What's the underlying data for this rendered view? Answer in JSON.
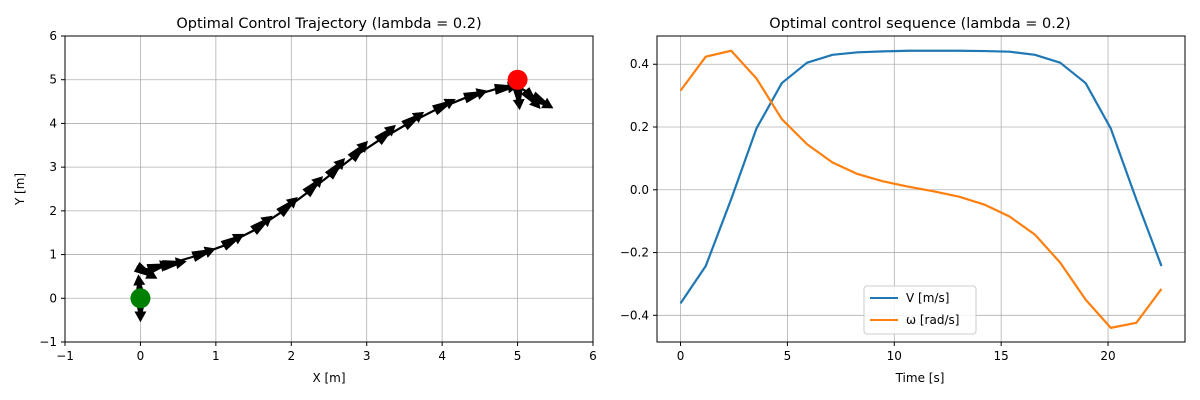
{
  "chart_data": [
    {
      "type": "scatter",
      "title": "Optimal Control Trajectory (lambda = 0.2)",
      "xlabel": "X [m]",
      "ylabel": "Y [m]",
      "xlim": [
        -1,
        6
      ],
      "ylim": [
        -1,
        6
      ],
      "xticks": [
        "−1",
        "0",
        "1",
        "2",
        "3",
        "4",
        "5",
        "6"
      ],
      "yticks": [
        "−1",
        "0",
        "1",
        "2",
        "3",
        "4",
        "5",
        "6"
      ],
      "grid": true,
      "start": {
        "x": 0,
        "y": 0,
        "color": "#008000"
      },
      "goal": {
        "x": 5,
        "y": 5,
        "color": "#ff0000"
      },
      "trajectory_color": "#000000",
      "arrows": [
        {
          "x": 0.0,
          "y": 0.0,
          "heading_deg": -90
        },
        {
          "x": 0.0,
          "y": 0.0,
          "heading_deg": 95
        },
        {
          "x": -0.05,
          "y": 0.72,
          "heading_deg": -30
        },
        {
          "x": 0.1,
          "y": 0.66,
          "heading_deg": 15
        },
        {
          "x": 0.3,
          "y": 0.75,
          "heading_deg": 10
        },
        {
          "x": 0.7,
          "y": 0.95,
          "heading_deg": 20
        },
        {
          "x": 1.1,
          "y": 1.2,
          "heading_deg": 30
        },
        {
          "x": 1.5,
          "y": 1.55,
          "heading_deg": 38
        },
        {
          "x": 1.85,
          "y": 1.95,
          "heading_deg": 42
        },
        {
          "x": 2.2,
          "y": 2.4,
          "heading_deg": 46
        },
        {
          "x": 2.5,
          "y": 2.8,
          "heading_deg": 48
        },
        {
          "x": 2.8,
          "y": 3.2,
          "heading_deg": 47
        },
        {
          "x": 3.15,
          "y": 3.6,
          "heading_deg": 42
        },
        {
          "x": 3.5,
          "y": 3.95,
          "heading_deg": 35
        },
        {
          "x": 3.9,
          "y": 4.3,
          "heading_deg": 28
        },
        {
          "x": 4.3,
          "y": 4.58,
          "heading_deg": 18
        },
        {
          "x": 4.7,
          "y": 4.78,
          "heading_deg": 8
        },
        {
          "x": 5.0,
          "y": 4.85,
          "heading_deg": -85
        },
        {
          "x": 5.1,
          "y": 4.75,
          "heading_deg": -50
        },
        {
          "x": 5.2,
          "y": 4.62,
          "heading_deg": -30
        }
      ]
    },
    {
      "type": "line",
      "title": "Optimal control sequence (lambda = 0.2)",
      "xlabel": "Time [s]",
      "ylabel": "",
      "xlim": [
        -1.1,
        23.6
      ],
      "ylim": [
        -0.485,
        0.49
      ],
      "xticks": [
        "0",
        "5",
        "10",
        "15",
        "20"
      ],
      "yticks": [
        "−0.4",
        "−0.2",
        "0.0",
        "0.2",
        "0.4"
      ],
      "grid": true,
      "legend_position": "lower-center",
      "x": [
        0,
        1.18,
        2.37,
        3.55,
        4.74,
        5.92,
        7.11,
        8.29,
        9.47,
        10.66,
        11.84,
        13.03,
        14.21,
        15.39,
        16.58,
        17.76,
        18.95,
        20.13,
        21.32,
        22.5
      ],
      "series": [
        {
          "name": "V [m/s]",
          "color": "#1f77b4",
          "values": [
            -0.362,
            -0.243,
            -0.03,
            0.195,
            0.34,
            0.405,
            0.43,
            0.438,
            0.441,
            0.443,
            0.443,
            0.443,
            0.442,
            0.44,
            0.43,
            0.405,
            0.34,
            0.195,
            -0.03,
            -0.243
          ]
        },
        {
          "name": "ω [rad/s]",
          "color": "#ff7f0e",
          "values": [
            0.316,
            0.424,
            0.443,
            0.355,
            0.225,
            0.145,
            0.087,
            0.05,
            0.027,
            0.01,
            -0.005,
            -0.022,
            -0.047,
            -0.085,
            -0.143,
            -0.232,
            -0.35,
            -0.44,
            -0.424,
            -0.316
          ]
        }
      ]
    }
  ]
}
